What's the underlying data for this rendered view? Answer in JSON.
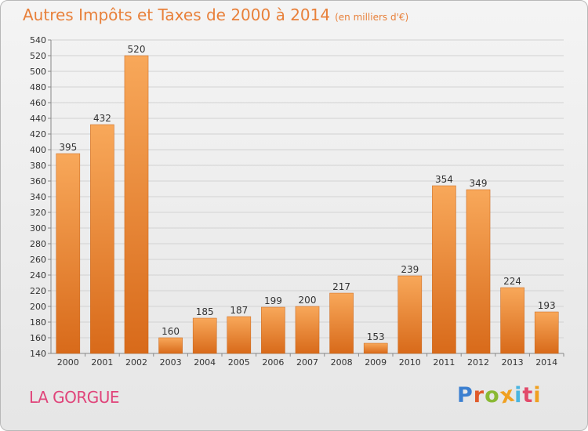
{
  "title": "Autres Impôts et Taxes de 2000 à 2014",
  "subtitle": "(en milliers d'€)",
  "location": "LA GORGUE",
  "brand": {
    "letters": [
      "P",
      "r",
      "o",
      "x",
      "i",
      "t",
      "i"
    ],
    "colors": [
      "#3b7fd0",
      "#e05a2a",
      "#8ab934",
      "#f0a020",
      "#4ab5e0",
      "#e24a6a",
      "#f0a020"
    ]
  },
  "colors": {
    "bar_top": "#f8a85a",
    "bar_bottom": "#d86a1a",
    "title": "#e8803a",
    "location": "#e0447a"
  },
  "chart_data": {
    "type": "bar",
    "title": "Autres Impôts et Taxes de 2000 à 2014",
    "subtitle": "(en milliers d'€)",
    "categories": [
      "2000",
      "2001",
      "2002",
      "2003",
      "2004",
      "2005",
      "2006",
      "2007",
      "2008",
      "2009",
      "2010",
      "2011",
      "2012",
      "2013",
      "2014"
    ],
    "values": [
      395,
      432,
      520,
      160,
      185,
      187,
      199,
      200,
      217,
      153,
      239,
      354,
      349,
      224,
      193
    ],
    "ylim": [
      140,
      540
    ],
    "yticks": [
      140,
      160,
      180,
      200,
      220,
      240,
      260,
      280,
      300,
      320,
      340,
      360,
      380,
      400,
      420,
      440,
      460,
      480,
      500,
      520,
      540
    ],
    "grid": true,
    "legend": "none"
  }
}
